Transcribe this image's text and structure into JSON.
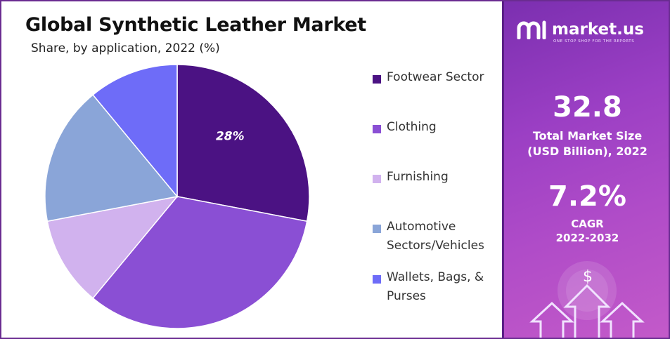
{
  "title": "Global Synthetic Leather Market",
  "subtitle": "Share, by application, 2022 (%)",
  "chart_data": {
    "type": "pie",
    "categories": [
      "Footwear Sector",
      "Clothing",
      "Furnishing",
      "Automotive Sectors/Vehicles",
      "Wallets, Bags, & Purses"
    ],
    "values": [
      28,
      33,
      11,
      17,
      11
    ],
    "colors": [
      "#4b1283",
      "#8a4fd4",
      "#d1b2ee",
      "#8aa5d8",
      "#6e6cf8"
    ],
    "data_labels": [
      "28%",
      "",
      "",
      "",
      ""
    ],
    "legend_position": "right"
  },
  "legend": {
    "items": [
      {
        "label": "Footwear Sector",
        "color": "#4b1283"
      },
      {
        "label": "Clothing",
        "color": "#8a4fd4"
      },
      {
        "label": "Furnishing",
        "color": "#d1b2ee"
      },
      {
        "label": "Automotive Sectors/Vehicles",
        "color": "#8aa5d8"
      },
      {
        "label": "Wallets, Bags, & Purses",
        "color": "#6e6cf8"
      }
    ]
  },
  "panel": {
    "brand_name": "market.us",
    "brand_tagline": "ONE STOP SHOP FOR THE REPORTS",
    "brand_icon": "market-us-logo",
    "market_size_value": "32.8",
    "market_size_label_line1": "Total Market Size",
    "market_size_label_line2": "(USD Billion), 2022",
    "cagr_value": "7.2%",
    "cagr_label_line1": "CAGR",
    "cagr_label_line2": "2022-2032",
    "dollar_symbol": "$",
    "decor_icons": [
      "dollar-coin-icon",
      "up-arrow-icon"
    ]
  }
}
